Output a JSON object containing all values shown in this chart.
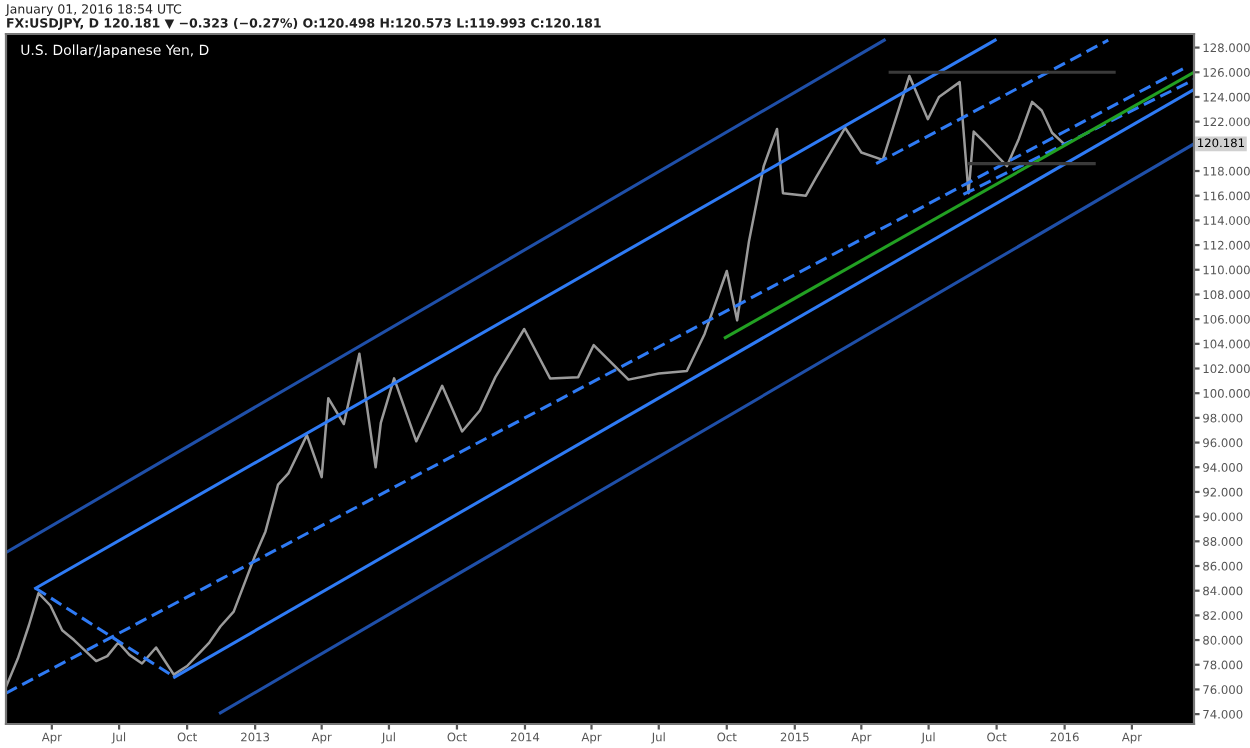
{
  "chart_data": {
    "type": "line",
    "title": "U.S. Dollar/Japanese Yen, D",
    "subtitle": "FX:USDJPY, D 120.181 ▼ −0.323 (−0.27%) O:120.498 H:120.573 L:119.993 C:120.181",
    "annotations": [
      "January 01, 2016 18:54 UTC",
      "120.181"
    ],
    "xlim": [
      "2012-01-30",
      "2016-06-24"
    ],
    "ylim": [
      73.2,
      129.1
    ],
    "xticks": [
      {
        "value": "2012-04-01",
        "label": "Apr"
      },
      {
        "value": "2012-07-01",
        "label": "Jul"
      },
      {
        "value": "2012-10-01",
        "label": "Oct"
      },
      {
        "value": "2013-01-01",
        "label": "2013"
      },
      {
        "value": "2013-04-01",
        "label": "Apr"
      },
      {
        "value": "2013-07-01",
        "label": "Jul"
      },
      {
        "value": "2013-10-01",
        "label": "Oct"
      },
      {
        "value": "2014-01-01",
        "label": "2014"
      },
      {
        "value": "2014-04-01",
        "label": "Apr"
      },
      {
        "value": "2014-07-01",
        "label": "Jul"
      },
      {
        "value": "2014-10-01",
        "label": "Oct"
      },
      {
        "value": "2015-01-01",
        "label": "2015"
      },
      {
        "value": "2015-04-01",
        "label": "Apr"
      },
      {
        "value": "2015-07-01",
        "label": "Jul"
      },
      {
        "value": "2015-10-01",
        "label": "Oct"
      },
      {
        "value": "2016-01-01",
        "label": "2016"
      },
      {
        "value": "2016-04-01",
        "label": "Apr"
      }
    ],
    "yticks": [
      {
        "value": 74,
        "label": "74.000"
      },
      {
        "value": 76,
        "label": "76.000"
      },
      {
        "value": 78,
        "label": "78.000"
      },
      {
        "value": 80,
        "label": "80.000"
      },
      {
        "value": 82,
        "label": "82.000"
      },
      {
        "value": 84,
        "label": "84.000"
      },
      {
        "value": 86,
        "label": "86.000"
      },
      {
        "value": 88,
        "label": "88.000"
      },
      {
        "value": 90,
        "label": "90.000"
      },
      {
        "value": 92,
        "label": "92.000"
      },
      {
        "value": 94,
        "label": "94.000"
      },
      {
        "value": 96,
        "label": "96.000"
      },
      {
        "value": 98,
        "label": "98.000"
      },
      {
        "value": 100,
        "label": "100.000"
      },
      {
        "value": 102,
        "label": "102.000"
      },
      {
        "value": 104,
        "label": "104.000"
      },
      {
        "value": 106,
        "label": "106.000"
      },
      {
        "value": 108,
        "label": "108.000"
      },
      {
        "value": 110,
        "label": "110.000"
      },
      {
        "value": 112,
        "label": "112.000"
      },
      {
        "value": 114,
        "label": "114.000"
      },
      {
        "value": 116,
        "label": "116.000"
      },
      {
        "value": 118,
        "label": "118.000"
      },
      {
        "value": 120,
        "label": null
      },
      {
        "value": 122,
        "label": "122.000"
      },
      {
        "value": 124,
        "label": "124.000"
      },
      {
        "value": 126,
        "label": "126.000"
      },
      {
        "value": 128,
        "label": "128.000"
      }
    ],
    "grid": false,
    "legend": false,
    "marker": "none",
    "series": [
      {
        "color": "#9a9a9a",
        "line_style": "solid",
        "x": [
          "2012-01-30",
          "2012-02-15",
          "2012-03-01",
          "2012-03-14",
          "2012-03-30",
          "2012-04-15",
          "2012-05-01",
          "2012-05-31",
          "2012-06-15",
          "2012-06-30",
          "2012-07-15",
          "2012-08-01",
          "2012-08-20",
          "2012-09-13",
          "2012-10-01",
          "2012-10-31",
          "2012-11-15",
          "2012-12-03",
          "2012-12-31",
          "2013-01-15",
          "2013-02-01",
          "2013-02-15",
          "2013-03-12",
          "2013-04-01",
          "2013-04-10",
          "2013-05-01",
          "2013-05-22",
          "2013-06-13",
          "2013-06-20",
          "2013-07-08",
          "2013-08-07",
          "2013-09-11",
          "2013-10-08",
          "2013-11-01",
          "2013-11-22",
          "2013-12-31",
          "2014-02-04",
          "2014-03-14",
          "2014-04-04",
          "2014-05-21",
          "2014-07-01",
          "2014-08-08",
          "2014-09-01",
          "2014-10-01",
          "2014-10-15",
          "2014-10-31",
          "2014-11-20",
          "2014-12-08",
          "2014-12-16",
          "2015-01-16",
          "2015-01-30",
          "2015-03-10",
          "2015-04-01",
          "2015-04-30",
          "2015-06-05",
          "2015-06-30",
          "2015-07-15",
          "2015-08-12",
          "2015-08-24",
          "2015-08-31",
          "2015-09-15",
          "2015-09-29",
          "2015-10-15",
          "2015-10-31",
          "2015-11-18",
          "2015-12-01",
          "2015-12-15",
          "2015-12-31"
        ],
        "values": [
          76.2,
          78.5,
          81.2,
          83.8,
          82.8,
          80.8,
          80.0,
          78.3,
          78.7,
          79.8,
          78.8,
          78.1,
          79.4,
          77.2,
          77.9,
          79.8,
          81.1,
          82.3,
          86.7,
          88.8,
          92.6,
          93.5,
          96.6,
          93.2,
          99.6,
          97.5,
          103.2,
          94.0,
          97.6,
          101.2,
          96.1,
          100.6,
          96.9,
          98.6,
          101.3,
          105.2,
          101.2,
          101.3,
          103.9,
          101.1,
          101.6,
          101.8,
          104.8,
          109.9,
          105.9,
          112.3,
          118.4,
          121.4,
          116.2,
          116.0,
          117.5,
          121.5,
          119.5,
          118.9,
          125.7,
          122.2,
          124.0,
          125.2,
          116.2,
          121.2,
          120.3,
          119.4,
          118.4,
          120.6,
          123.6,
          122.9,
          121.1,
          120.2
        ]
      },
      {
        "color": "#2f7bf5",
        "line_style": "solid",
        "x": [
          "2012-03-10",
          "2015-09-29"
        ],
        "values": [
          84.2,
          128.6
        ]
      },
      {
        "color": "#2f7bf5",
        "line_style": "solid",
        "x": [
          "2012-09-14",
          "2016-06-24"
        ],
        "values": [
          77.0,
          124.6
        ]
      },
      {
        "color": "#2f7bf5",
        "line_style": "dashed",
        "x": [
          "2012-01-30",
          "2016-06-16"
        ],
        "values": [
          75.7,
          126.5
        ]
      },
      {
        "color": "#2f7bf5",
        "line_style": "dashed",
        "x": [
          "2012-03-10",
          "2012-09-14"
        ],
        "values": [
          84.2,
          77.0
        ]
      },
      {
        "color": "#2f7bf5",
        "line_style": "dashed",
        "x": [
          "2015-04-21",
          "2016-02-29"
        ],
        "values": [
          118.6,
          128.6
        ]
      },
      {
        "color": "#2f7bf5",
        "line_style": "dashed",
        "x": [
          "2015-08-17",
          "2016-06-24"
        ],
        "values": [
          116.1,
          125.4
        ]
      },
      {
        "color": "#1f4fa8",
        "line_style": "solid",
        "x": [
          "2012-01-30",
          "2015-05-02"
        ],
        "values": [
          87.1,
          128.6
        ]
      },
      {
        "color": "#1f4fa8",
        "line_style": "solid",
        "x": [
          "2012-11-15",
          "2016-06-24"
        ],
        "values": [
          74.1,
          120.2
        ]
      },
      {
        "color": "#22a022",
        "line_style": "solid",
        "x": [
          "2014-09-29",
          "2016-06-24"
        ],
        "values": [
          104.5,
          126.0
        ]
      },
      {
        "color": "#3a3a3a",
        "line_style": "solid",
        "x": [
          "2015-05-10",
          "2016-03-08"
        ],
        "values": [
          126.0,
          126.0
        ]
      },
      {
        "color": "#3a3a3a",
        "line_style": "solid",
        "x": [
          "2015-08-25",
          "2016-02-10"
        ],
        "values": [
          118.6,
          118.6
        ]
      }
    ]
  }
}
